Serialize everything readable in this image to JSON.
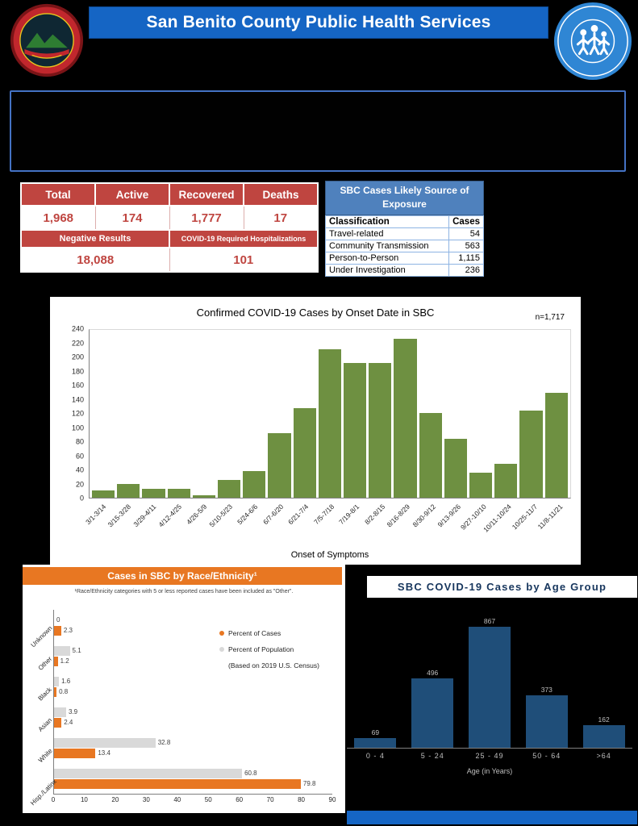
{
  "colors": {
    "banner_blue": "#1565c4",
    "table_red": "#bf4540",
    "exposure_blue": "#4f81bd",
    "onset_green": "#6e9041",
    "race_orange": "#e87722",
    "race_gray": "#d9d9d9",
    "age_title_navy": "#17365d",
    "age_bar_blue": "#1f4e79",
    "footer_blue": "#1565c4"
  },
  "header": {
    "title": "San Benito County Public Health Services",
    "left_logo_icon": "san-benito-county-seal",
    "right_logo_icon": "sbc-public-health-services-logo"
  },
  "stats": {
    "columns": [
      "Total",
      "Active",
      "Recovered",
      "Deaths"
    ],
    "values": [
      "1,968",
      "174",
      "1,777",
      "17"
    ],
    "secondary_labels": [
      "Negative Results",
      "COVID-19 Required Hospitalizations"
    ],
    "secondary_values": [
      "18,088",
      "101"
    ]
  },
  "exposure_table": {
    "title": "SBC Cases Likely Source of Exposure",
    "columns": [
      "Classification",
      "Cases"
    ],
    "rows": [
      {
        "classification": "Travel-related",
        "cases": "54"
      },
      {
        "classification": "Community Transmission",
        "cases": "563"
      },
      {
        "classification": "Person-to-Person",
        "cases": "1,115"
      },
      {
        "classification": "Under Investigation",
        "cases": "236"
      }
    ]
  },
  "chart_data": [
    {
      "id": "onset",
      "type": "bar",
      "title": "Confirmed COVID-19 Cases by Onset Date in SBC",
      "annotation": "n=1,717",
      "categories": [
        "3/1-3/14",
        "3/15-3/28",
        "3/29-4/11",
        "4/12-4/25",
        "4/26-5/9",
        "5/10-5/23",
        "5/24-6/6",
        "6/7-6/20",
        "6/21-7/4",
        "7/5-7/18",
        "7/19-8/1",
        "8/2-8/15",
        "8/16-8/29",
        "8/30-9/12",
        "9/13-9/26",
        "9/27-10/10",
        "10/11-10/24",
        "10/25-11/7",
        "11/8-11/21"
      ],
      "values": [
        10,
        20,
        13,
        13,
        4,
        25,
        38,
        92,
        127,
        210,
        191,
        191,
        225,
        120,
        83,
        35,
        48,
        123,
        149
      ],
      "xlabel": "Onset of Symptoms",
      "ylabel": "",
      "ylim": [
        0,
        240
      ],
      "ytick_step": 20,
      "bar_color": "#6e9041",
      "grid": false,
      "legend": "none"
    },
    {
      "id": "race",
      "type": "bar-horizontal",
      "title": "Cases in SBC by Race/Ethnicity¹",
      "footnote": "¹Race/Ethnicity categories with 5 or less reported cases have been included as \"Other\".",
      "categories": [
        "Unknown",
        "Other",
        "Black",
        "Asian",
        "White",
        "Hisp./Latinx"
      ],
      "series": [
        {
          "name": "Percent of Cases",
          "color": "#e87722",
          "values": [
            2.3,
            1.2,
            0.8,
            2.4,
            13.4,
            79.8
          ]
        },
        {
          "name": "Percent of Population",
          "color": "#d9d9d9",
          "values": [
            0,
            5.1,
            1.6,
            3.9,
            32.8,
            60.8
          ]
        }
      ],
      "legend_note": "(Based on 2019 U.S. Census)",
      "xlim": [
        0,
        90
      ],
      "xtick_step": 10,
      "legend_position": "upper-right"
    },
    {
      "id": "age",
      "type": "bar",
      "title": "SBC COVID-19 Cases by Age Group",
      "categories": [
        "0 - 4",
        "5 - 24",
        "25 - 49",
        "50 - 64",
        ">64"
      ],
      "values": [
        69,
        496,
        867,
        373,
        162
      ],
      "xlabel": "Age (in Years)",
      "bar_color": "#1f4e79",
      "value_labels": true
    }
  ]
}
